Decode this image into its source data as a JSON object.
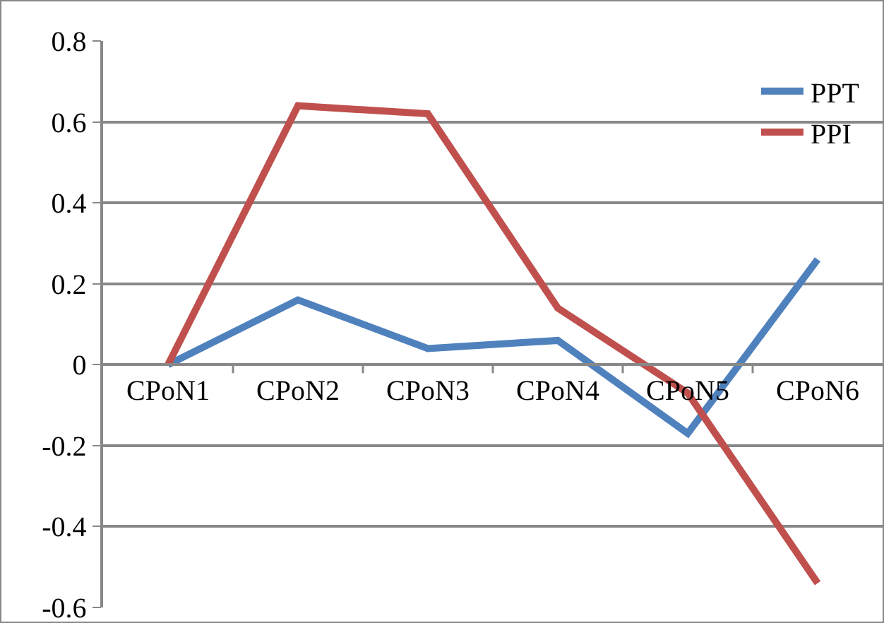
{
  "chart_data": {
    "type": "line",
    "categories": [
      "CPoN1",
      "CPoN2",
      "CPoN3",
      "CPoN4",
      "CPoN5",
      "CPoN6"
    ],
    "series": [
      {
        "name": "PPT",
        "color": "#4f81bd",
        "values": [
          0,
          0.16,
          0.04,
          0.06,
          -0.17,
          0.26
        ]
      },
      {
        "name": "PPI",
        "color": "#c0504d",
        "values": [
          0,
          0.64,
          0.62,
          0.14,
          -0.07,
          -0.54
        ]
      }
    ],
    "ylim": [
      -0.6,
      0.8
    ],
    "yticks": [
      -0.6,
      -0.4,
      -0.2,
      0,
      0.2,
      0.4,
      0.6,
      0.8
    ],
    "grid": "y",
    "legend": "top right",
    "marker": "none",
    "line_style": "solid"
  }
}
